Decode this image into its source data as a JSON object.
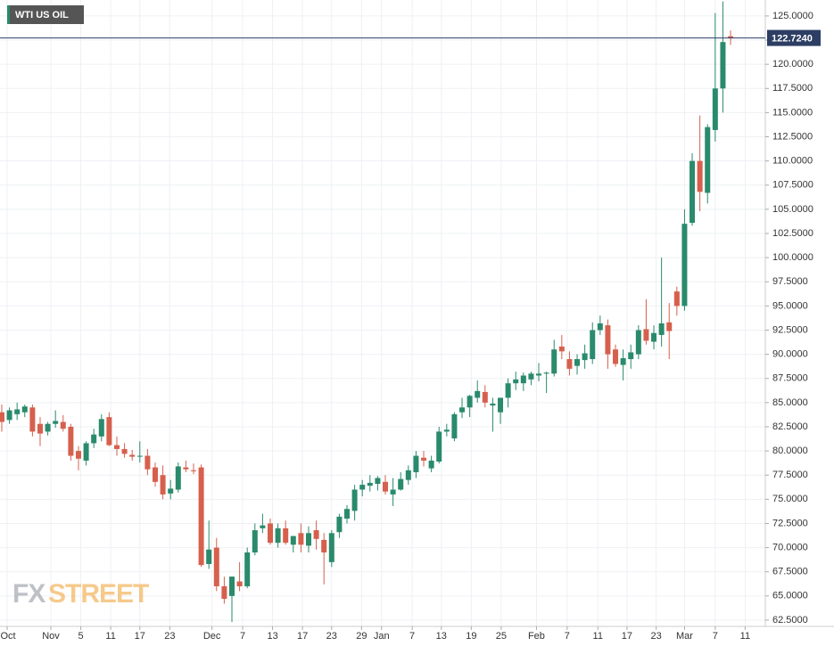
{
  "chart_data": {
    "type": "candlestick",
    "title": "WTI US OIL",
    "watermark": [
      "FX",
      "STREET"
    ],
    "up_color": "#2a8a6c",
    "down_color": "#d6604d",
    "grid": true,
    "current_price": {
      "value": 122.724,
      "label": "122.7240"
    },
    "ylim": [
      61.85,
      126.65
    ],
    "yticks": [
      {
        "value": 62.5,
        "label": "62.5000"
      },
      {
        "value": 65,
        "label": "65.0000"
      },
      {
        "value": 67.5,
        "label": "67.5000"
      },
      {
        "value": 70,
        "label": "70.0000"
      },
      {
        "value": 72.5,
        "label": "72.5000"
      },
      {
        "value": 75,
        "label": "75.0000"
      },
      {
        "value": 77.5,
        "label": "77.5000"
      },
      {
        "value": 80,
        "label": "80.0000"
      },
      {
        "value": 82.5,
        "label": "82.5000"
      },
      {
        "value": 85,
        "label": "85.0000"
      },
      {
        "value": 87.5,
        "label": "87.5000"
      },
      {
        "value": 90,
        "label": "90.0000"
      },
      {
        "value": 92.5,
        "label": "92.5000"
      },
      {
        "value": 95,
        "label": "95.0000"
      },
      {
        "value": 97.5,
        "label": "97.5000"
      },
      {
        "value": 100,
        "label": "100.0000"
      },
      {
        "value": 102.5,
        "label": "102.5000"
      },
      {
        "value": 105,
        "label": "105.0000"
      },
      {
        "value": 107.5,
        "label": "107.5000"
      },
      {
        "value": 110,
        "label": "110.0000"
      },
      {
        "value": 112.5,
        "label": "112.5000"
      },
      {
        "value": 115,
        "label": "115.0000"
      },
      {
        "value": 117.5,
        "label": "117.5000"
      },
      {
        "value": 120,
        "label": "120.0000"
      },
      {
        "value": 122.5,
        "label": "122.5000"
      },
      {
        "value": 125,
        "label": "125.0000"
      }
    ],
    "xlim": [
      -0.23,
      99.53
    ],
    "xticks": [
      {
        "value": 0.7,
        "label": "Oct"
      },
      {
        "value": 6.4,
        "label": "Nov"
      },
      {
        "value": 10.3,
        "label": "5"
      },
      {
        "value": 14.2,
        "label": "11"
      },
      {
        "value": 18,
        "label": "17"
      },
      {
        "value": 21.9,
        "label": "23"
      },
      {
        "value": 27.4,
        "label": "Dec"
      },
      {
        "value": 31.4,
        "label": "7"
      },
      {
        "value": 35.3,
        "label": "13"
      },
      {
        "value": 39.2,
        "label": "17"
      },
      {
        "value": 43,
        "label": "23"
      },
      {
        "value": 46.9,
        "label": "29"
      },
      {
        "value": 49.5,
        "label": "Jan"
      },
      {
        "value": 53.5,
        "label": "7"
      },
      {
        "value": 57.3,
        "label": "13"
      },
      {
        "value": 61.2,
        "label": "19"
      },
      {
        "value": 65.1,
        "label": "25"
      },
      {
        "value": 69.7,
        "label": "Feb"
      },
      {
        "value": 73.7,
        "label": "7"
      },
      {
        "value": 77.7,
        "label": "11"
      },
      {
        "value": 81.5,
        "label": "17"
      },
      {
        "value": 85.3,
        "label": "23"
      },
      {
        "value": 89,
        "label": "Mar"
      },
      {
        "value": 93,
        "label": "7"
      },
      {
        "value": 96.9,
        "label": "11"
      }
    ],
    "open": [
      84,
      83.2,
      83.8,
      84,
      84.5,
      82.8,
      82,
      82.8,
      83,
      82.5,
      80,
      79,
      80.8,
      81.5,
      83.5,
      80.6,
      80.2,
      79.6,
      79.4,
      79.5,
      78.3,
      77.5,
      75.6,
      76,
      78.3,
      78,
      78.3,
      68.3,
      70,
      66,
      65,
      66.5,
      66,
      69.5,
      72,
      72.5,
      70.5,
      72,
      70.3,
      71.5,
      70.2,
      71.8,
      70.8,
      68.5,
      71.6,
      73,
      73.8,
      76,
      76.4,
      76.6,
      76.8,
      75.5,
      76,
      77,
      77.8,
      79.3,
      78.2,
      78.9,
      82,
      81.3,
      84,
      84.5,
      85.5,
      86.1,
      84.7,
      84,
      85.5,
      87,
      87,
      87.4,
      87.8,
      88,
      88,
      90.8,
      89.5,
      88.8,
      89.4,
      89.5,
      92.5,
      93,
      90.5,
      88.9,
      89.5,
      90,
      92.6,
      91.3,
      92,
      93.3,
      96.5,
      95,
      103.6,
      110,
      106.7,
      113.2,
      117.5,
      122.9
    ],
    "high": [
      84.8,
      84.5,
      85,
      84.8,
      84.8,
      83.5,
      83,
      84.2,
      83.7,
      82.8,
      80.5,
      81,
      82.3,
      83.8,
      84,
      81.5,
      80.8,
      80.1,
      81,
      80.2,
      78.8,
      78.5,
      77,
      78.8,
      79,
      78.7,
      78.6,
      72.8,
      71,
      67,
      67,
      68.5,
      70,
      72.5,
      73.5,
      73,
      72.5,
      72.8,
      71.2,
      72.5,
      72.2,
      72.8,
      71.5,
      71.8,
      73.5,
      74.4,
      76.5,
      77,
      77.5,
      77.4,
      77.5,
      77.2,
      77.8,
      78.5,
      80,
      80,
      79.5,
      82.5,
      82.8,
      84,
      85.5,
      85.8,
      87.3,
      86.8,
      85.5,
      85.4,
      87.5,
      88.2,
      88.1,
      88.2,
      89.1,
      88.2,
      91.5,
      92,
      90.3,
      90,
      91,
      93.3,
      94,
      93.6,
      91,
      90.5,
      91,
      93,
      95.7,
      93,
      100,
      95.3,
      97,
      105,
      110.8,
      114.7,
      113.8,
      125.3,
      126.5,
      123.5
    ],
    "low": [
      82,
      82.8,
      83.2,
      83.5,
      81.5,
      80.5,
      81.6,
      82.4,
      82,
      79,
      78,
      78.5,
      80.3,
      81,
      80.5,
      79.5,
      79.3,
      79,
      78.8,
      77.5,
      76.3,
      75,
      75,
      75.7,
      77.8,
      77.6,
      68,
      67.8,
      65.5,
      64.2,
      62.3,
      65.5,
      65.8,
      69.2,
      71.5,
      70.3,
      70,
      70.3,
      69.5,
      69.5,
      69.5,
      69.8,
      66.2,
      68,
      71,
      72.5,
      72.8,
      75.3,
      75.8,
      75.9,
      75.5,
      74.3,
      75.9,
      76.5,
      77.2,
      78.4,
      77.8,
      78.7,
      81.5,
      81,
      83.4,
      83.5,
      85,
      84.5,
      82,
      82.8,
      84.5,
      86.3,
      86.2,
      86.8,
      87.2,
      86,
      87.7,
      89.5,
      87.8,
      87.9,
      88.5,
      89,
      92,
      88.5,
      88.7,
      87.3,
      88.5,
      89.5,
      91,
      90.5,
      90.8,
      89.5,
      94,
      94.5,
      103.3,
      104.8,
      105.6,
      112,
      115,
      122
    ],
    "close": [
      83,
      84.2,
      84.3,
      84.6,
      82,
      81.8,
      82.8,
      83.1,
      82.3,
      79.5,
      79.2,
      80.8,
      81.7,
      83.3,
      80.6,
      80.2,
      79.7,
      79.4,
      79.5,
      78.1,
      76.8,
      75.5,
      76.1,
      78.4,
      78.1,
      77.9,
      68.2,
      69.8,
      66,
      64.7,
      67,
      66,
      69.5,
      71.8,
      72.3,
      70.5,
      72,
      70.5,
      71.2,
      70.3,
      71.5,
      70.9,
      69.5,
      71.5,
      73.2,
      74,
      76,
      76.5,
      76.7,
      77.2,
      75.8,
      76,
      77.1,
      78,
      79.5,
      79,
      79,
      82,
      82.2,
      83.8,
      84.5,
      85.7,
      86.2,
      85,
      84.9,
      85.5,
      87,
      87.4,
      87.8,
      88,
      88,
      88.1,
      90.5,
      90.3,
      88.5,
      89.5,
      90.1,
      92.5,
      93.2,
      90,
      89,
      89.6,
      90.2,
      92.5,
      91.4,
      92.2,
      93.2,
      92.4,
      95,
      103.5,
      110,
      106.8,
      113.5,
      117.5,
      122.3,
      122.7
    ]
  }
}
